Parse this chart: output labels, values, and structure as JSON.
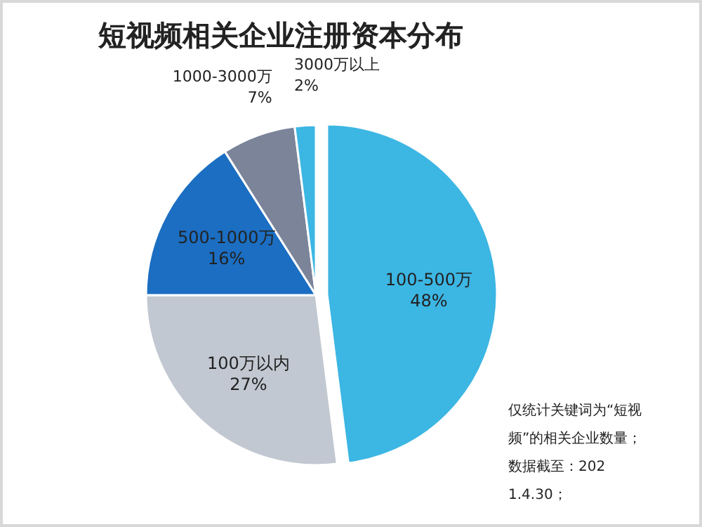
{
  "chart_data": {
    "type": "pie",
    "title": "短视频相关企业注册资本分布",
    "categories": [
      "100-500万",
      "100万以内",
      "500-1000万",
      "1000-3000万",
      "3000万以上"
    ],
    "values": [
      48,
      27,
      16,
      7,
      2
    ],
    "colors": [
      "#3cb6e3",
      "#c2c8d1",
      "#1b6ec2",
      "#7b8499",
      "#3cb6e3"
    ],
    "value_labels": [
      "48%",
      "27%",
      "16%",
      "7%",
      "2%"
    ],
    "annotations": [
      "仅统计关键词为“短视频”的相关企业数量；",
      "数据截至：2021.4.30；"
    ]
  }
}
